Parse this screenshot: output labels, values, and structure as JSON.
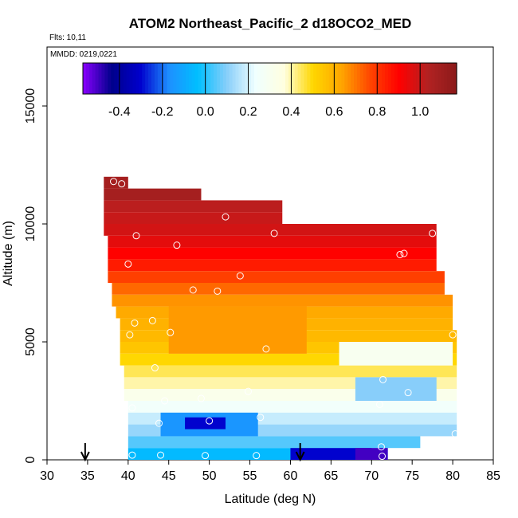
{
  "chart_data": {
    "type": "heatmap",
    "title": "ATOM2 Northeast_Pacific_2 d18OCO2_MED",
    "annotations": [
      "Flts: 10,11",
      "MMDD: 0219,0221"
    ],
    "xlabel": "Latitude (deg N)",
    "ylabel": "Altitude (m)",
    "xlim": [
      30,
      85
    ],
    "ylim": [
      0,
      17500
    ],
    "x_ticks": [
      "30",
      "35",
      "40",
      "45",
      "50",
      "55",
      "60",
      "65",
      "70",
      "75",
      "80",
      "85"
    ],
    "y_ticks": [
      "0",
      "5000",
      "10000",
      "15000"
    ],
    "grid": false,
    "colorbar": {
      "range": [
        -0.57,
        1.17
      ],
      "ticks": [
        "-0.4",
        "-0.2",
        "0.0",
        "0.2",
        "0.4",
        "0.6",
        "0.8",
        "1.0"
      ],
      "colors": [
        "#8B00FF",
        "#00008B",
        "#0000CD",
        "#1E90FF",
        "#00BFFF",
        "#87CEFA",
        "#F0FFFF",
        "#FFFFE0",
        "#FFD700",
        "#FFA500",
        "#FF4500",
        "#FF0000",
        "#B22222",
        "#8B1A1A"
      ]
    },
    "level_rows": [
      {
        "alt_range": [
          11500,
          12000
        ],
        "lat_range": [
          37,
          40
        ],
        "value": 1.08
      },
      {
        "alt_range": [
          11000,
          11500
        ],
        "lat_range": [
          37,
          49
        ],
        "value": 1.08
      },
      {
        "alt_range": [
          10500,
          11000
        ],
        "lat_range": [
          37,
          59
        ],
        "value": 1.02
      },
      {
        "alt_range": [
          10000,
          10500
        ],
        "lat_range": [
          37,
          59
        ],
        "value": 1.0
      },
      {
        "alt_range": [
          9500,
          10000
        ],
        "lat_range": [
          37,
          78
        ],
        "value": 0.98
      },
      {
        "alt_range": [
          9000,
          9500
        ],
        "lat_range": [
          37.5,
          78
        ],
        "value": 0.95
      },
      {
        "alt_range": [
          8500,
          9000
        ],
        "lat_range": [
          37.5,
          78
        ],
        "value": 0.9
      },
      {
        "alt_range": [
          8000,
          8500
        ],
        "lat_range": [
          37.5,
          78
        ],
        "value": 0.85
      },
      {
        "alt_range": [
          7500,
          8000
        ],
        "lat_range": [
          37.5,
          79
        ],
        "value": 0.78
      },
      {
        "alt_range": [
          7000,
          7500
        ],
        "lat_range": [
          38,
          79
        ],
        "value": 0.72
      },
      {
        "alt_range": [
          6500,
          7000
        ],
        "lat_range": [
          38,
          80
        ],
        "value": 0.66
      },
      {
        "alt_range": [
          6000,
          6500
        ],
        "lat_range": [
          38.5,
          80
        ],
        "value": 0.62
      },
      {
        "alt_range": [
          5500,
          6000
        ],
        "lat_range": [
          39,
          80
        ],
        "value": 0.6
      },
      {
        "alt_range": [
          5000,
          5500
        ],
        "lat_range": [
          39,
          80.5
        ],
        "value": 0.58
      },
      {
        "alt_range": [
          4500,
          5000
        ],
        "lat_range": [
          39,
          80.5
        ],
        "value": 0.55
      },
      {
        "alt_range": [
          4000,
          4500
        ],
        "lat_range": [
          39,
          80.5
        ],
        "value": 0.5
      },
      {
        "alt_range": [
          3500,
          4000
        ],
        "lat_range": [
          39.5,
          80.5
        ],
        "value": 0.45
      },
      {
        "alt_range": [
          3000,
          3500
        ],
        "lat_range": [
          39.5,
          80.5
        ],
        "value": 0.4
      },
      {
        "alt_range": [
          2500,
          3000
        ],
        "lat_range": [
          39.5,
          80.5
        ],
        "value": 0.32
      },
      {
        "alt_range": [
          2000,
          2500
        ],
        "lat_range": [
          40,
          80.5
        ],
        "value": 0.25
      },
      {
        "alt_range": [
          1500,
          2000
        ],
        "lat_range": [
          40,
          80.5
        ],
        "value": 0.18
      },
      {
        "alt_range": [
          1000,
          1500
        ],
        "lat_range": [
          40,
          80.5
        ],
        "value": 0.12
      },
      {
        "alt_range": [
          500,
          1000
        ],
        "lat_range": [
          40,
          76
        ],
        "value": 0.05
      },
      {
        "alt_range": [
          0,
          500
        ],
        "lat_range": [
          40,
          72
        ],
        "value": -0.05
      }
    ],
    "patches": [
      {
        "alt_range": [
          4500,
          6500
        ],
        "lat_range": [
          45,
          62
        ],
        "value": 0.65
      },
      {
        "alt_range": [
          1000,
          2000
        ],
        "lat_range": [
          44,
          56
        ],
        "value": -0.15
      },
      {
        "alt_range": [
          1300,
          1800
        ],
        "lat_range": [
          47,
          52
        ],
        "value": -0.3
      },
      {
        "alt_range": [
          0,
          500
        ],
        "lat_range": [
          60,
          70
        ],
        "value": -0.3
      },
      {
        "alt_range": [
          0,
          500
        ],
        "lat_range": [
          68,
          72
        ],
        "value": -0.5
      },
      {
        "alt_range": [
          2500,
          3500
        ],
        "lat_range": [
          68,
          78
        ],
        "value": 0.1
      },
      {
        "alt_range": [
          4000,
          5000
        ],
        "lat_range": [
          66,
          80
        ],
        "value": 0.3
      }
    ],
    "points": [
      {
        "lat": 36.5,
        "alt": 11900
      },
      {
        "lat": 38.2,
        "alt": 11800
      },
      {
        "lat": 39.2,
        "alt": 11700
      },
      {
        "lat": 52,
        "alt": 10300
      },
      {
        "lat": 58,
        "alt": 9600
      },
      {
        "lat": 41,
        "alt": 9500
      },
      {
        "lat": 46,
        "alt": 9100
      },
      {
        "lat": 77.5,
        "alt": 9600
      },
      {
        "lat": 73.5,
        "alt": 8700
      },
      {
        "lat": 74,
        "alt": 8750
      },
      {
        "lat": 40,
        "alt": 8300
      },
      {
        "lat": 53.8,
        "alt": 7800
      },
      {
        "lat": 48,
        "alt": 7200
      },
      {
        "lat": 51,
        "alt": 7150
      },
      {
        "lat": 43,
        "alt": 5900
      },
      {
        "lat": 40.8,
        "alt": 5800
      },
      {
        "lat": 45.2,
        "alt": 5400
      },
      {
        "lat": 40.2,
        "alt": 5300
      },
      {
        "lat": 57,
        "alt": 4700
      },
      {
        "lat": 80,
        "alt": 5300
      },
      {
        "lat": 43.3,
        "alt": 3900
      },
      {
        "lat": 71.4,
        "alt": 3400
      },
      {
        "lat": 54.8,
        "alt": 2900
      },
      {
        "lat": 74.5,
        "alt": 2850
      },
      {
        "lat": 49,
        "alt": 2600
      },
      {
        "lat": 44.5,
        "alt": 2500
      },
      {
        "lat": 71,
        "alt": 2350
      },
      {
        "lat": 40.5,
        "alt": 2200
      },
      {
        "lat": 56.3,
        "alt": 1800
      },
      {
        "lat": 43.8,
        "alt": 1550
      },
      {
        "lat": 50,
        "alt": 1650
      },
      {
        "lat": 80.3,
        "alt": 1100
      },
      {
        "lat": 71.2,
        "alt": 550
      },
      {
        "lat": 40.5,
        "alt": 200
      },
      {
        "lat": 44,
        "alt": 200
      },
      {
        "lat": 49.5,
        "alt": 180
      },
      {
        "lat": 55.8,
        "alt": 180
      },
      {
        "lat": 71.3,
        "alt": 150
      }
    ],
    "arrows_lat": [
      34.7,
      61.2
    ]
  }
}
